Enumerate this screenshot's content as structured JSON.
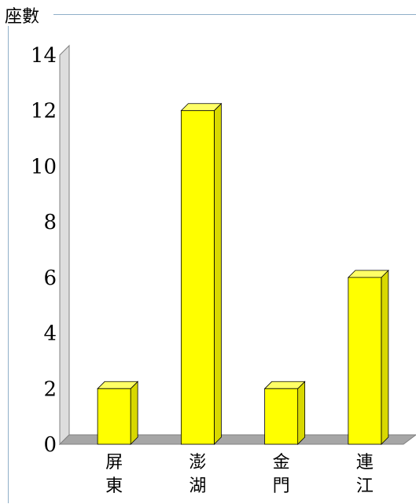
{
  "chart_data": {
    "type": "bar",
    "ylabel": "座數",
    "categories": [
      "屏東",
      "澎湖",
      "金門",
      "連江"
    ],
    "values": [
      2,
      12,
      2,
      6
    ],
    "ylim": [
      0,
      14
    ],
    "yticks": [
      "0",
      "2",
      "4",
      "6",
      "8",
      "10",
      "12",
      "14"
    ],
    "grid": false,
    "legend": "none",
    "bar_color": "#FFFF00",
    "bar_side_color": "#D8D800",
    "bar_top_color": "#FFFF66",
    "floor_color": "#A6A6A6",
    "wall_color": "#DDDDDD",
    "frame_color": "#8FAFC8"
  }
}
